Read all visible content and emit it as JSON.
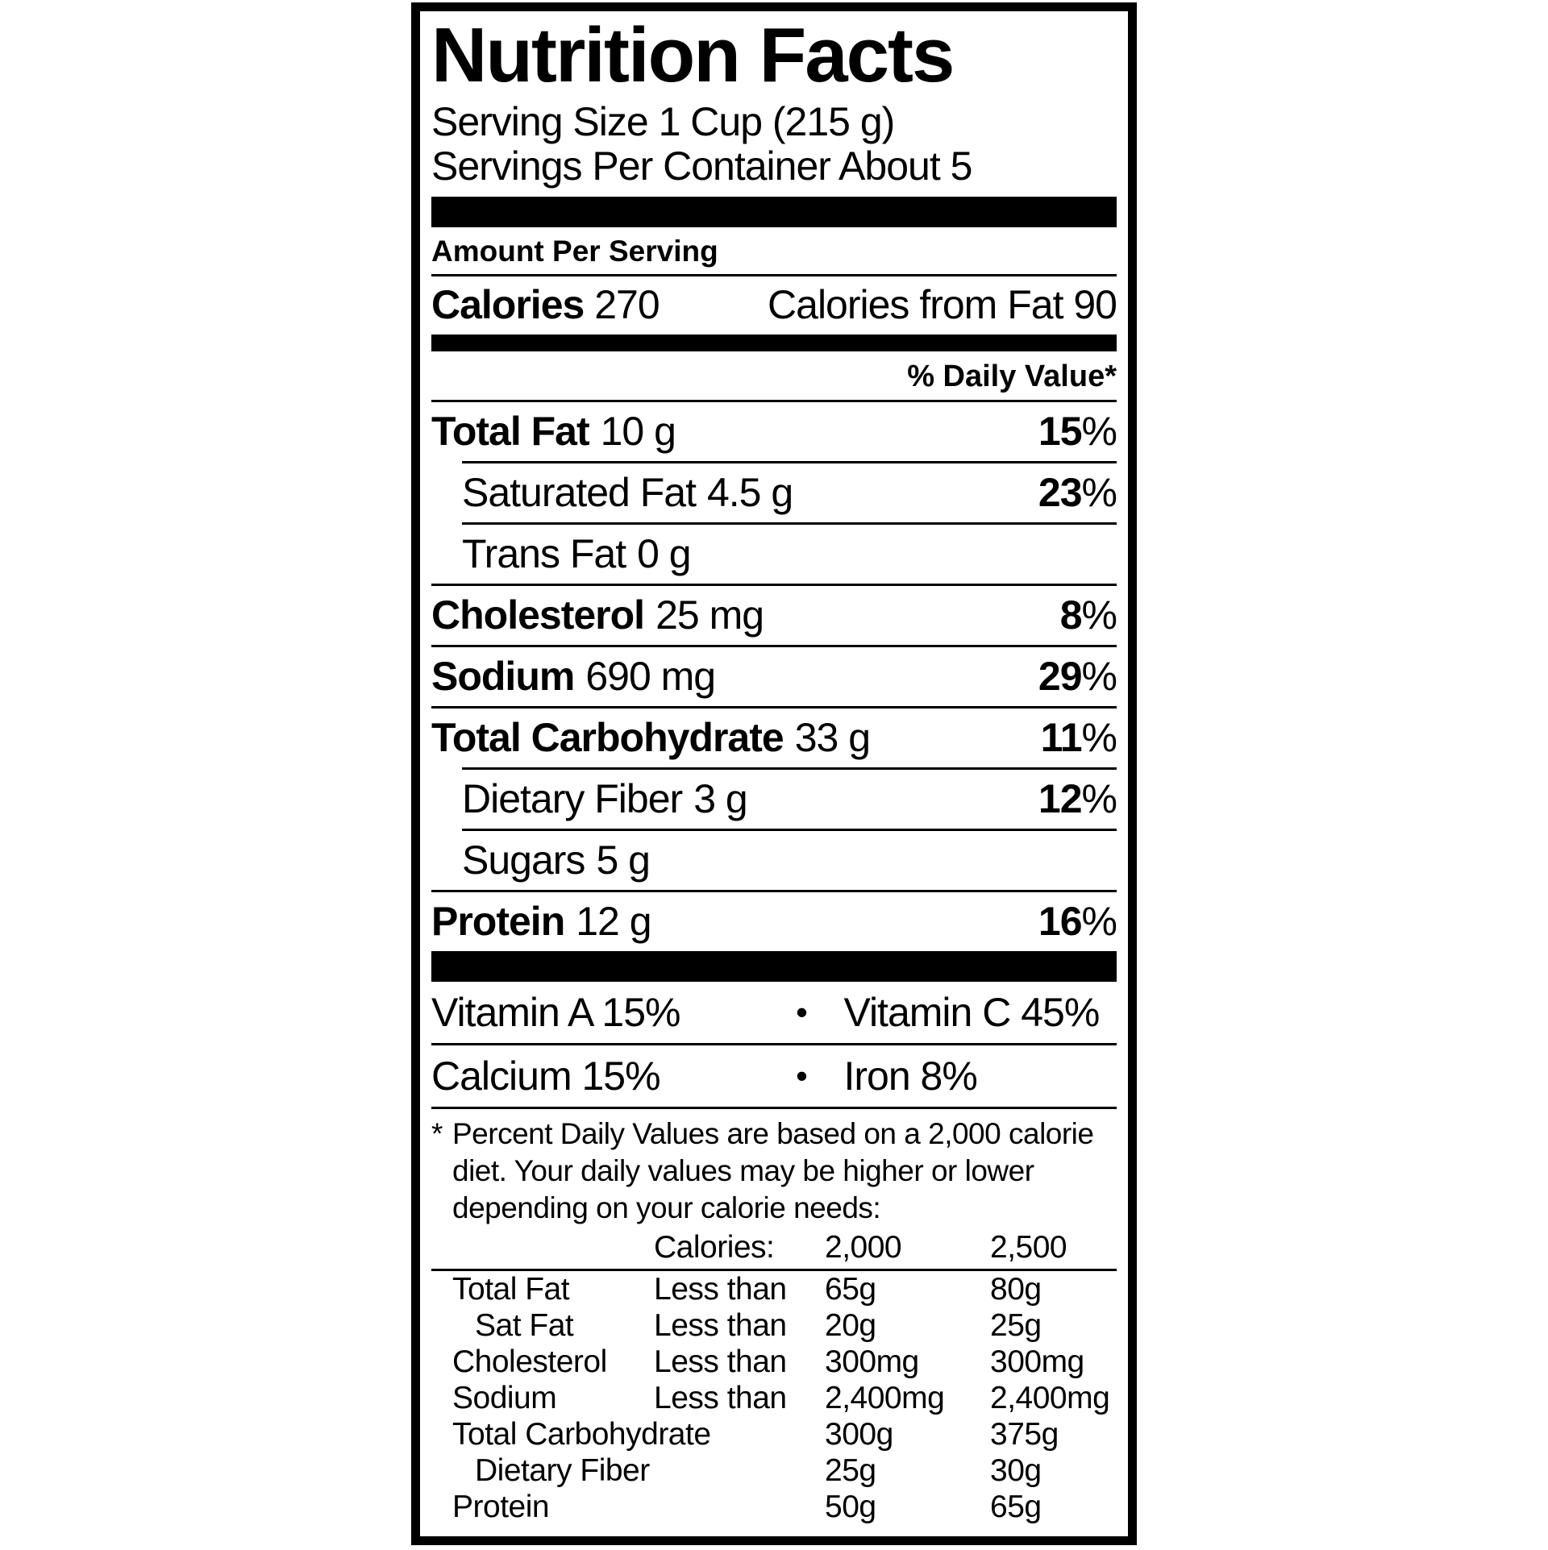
{
  "nutrition_label": {
    "title": "Nutrition Facts",
    "serving_size_line": "Serving Size 1 Cup (215 g)",
    "servings_line": "Servings Per Container About 5",
    "amount_per_serving": "Amount Per Serving",
    "calories_label": "Calories",
    "calories_value": "270",
    "calories_from_fat_label": "Calories from Fat",
    "calories_from_fat_value": "90",
    "daily_value_header": "% Daily Value*",
    "percent_sign": "%",
    "bullet": "•",
    "nutrient_rows": [
      {
        "name": "Total Fat",
        "amount": "10 g",
        "dv": "15"
      },
      {
        "name": "Saturated Fat",
        "amount": "4.5 g",
        "dv": "23"
      },
      {
        "name": "Trans Fat",
        "amount": "0 g"
      },
      {
        "name": "Cholesterol",
        "amount": "25 mg",
        "dv": "8"
      },
      {
        "name": "Sodium",
        "amount": "690 mg",
        "dv": "29"
      },
      {
        "name": "Total Carbohydrate",
        "amount": "33 g",
        "dv": "11"
      },
      {
        "name": "Dietary Fiber",
        "amount": "3 g",
        "dv": "12"
      },
      {
        "name": "Sugars",
        "amount": "5 g"
      },
      {
        "name": "Protein",
        "amount": "12 g",
        "dv": "16"
      }
    ],
    "micronutrients": [
      {
        "left": "Vitamin A 15%",
        "right": "Vitamin C 45%"
      },
      {
        "left": "Calcium 15%",
        "right": "Iron 8%"
      }
    ],
    "footnote_marker": "*",
    "footnote_text": "Percent Daily Values are based on a 2,000 calorie diet. Your daily values may be higher or lower depending on your calorie needs:",
    "dv_table": {
      "header": {
        "calories_label": "Calories:",
        "col_2000": "2,000",
        "col_2500": "2,500"
      },
      "rows": [
        {
          "name": "Total Fat",
          "qualifier": "Less than",
          "v2000": "65g",
          "v2500": "80g"
        },
        {
          "name": "Sat Fat",
          "qualifier": "Less than",
          "v2000": "20g",
          "v2500": "25g"
        },
        {
          "name": "Cholesterol",
          "qualifier": "Less than",
          "v2000": "300mg",
          "v2500": "300mg"
        },
        {
          "name": "Sodium",
          "qualifier": "Less than",
          "v2000": "2,400mg",
          "v2500": "2,400mg"
        },
        {
          "name": "Total Carbohydrate",
          "qualifier": "",
          "v2000": "300g",
          "v2500": "375g"
        },
        {
          "name": "Dietary Fiber",
          "qualifier": "",
          "v2000": "25g",
          "v2500": "30g"
        },
        {
          "name": "Protein",
          "qualifier": "",
          "v2000": "50g",
          "v2500": "65g"
        }
      ]
    }
  }
}
